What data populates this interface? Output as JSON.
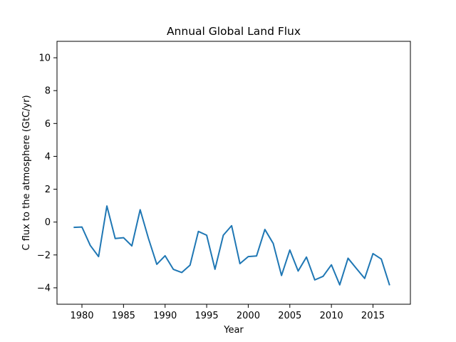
{
  "chart_data": {
    "type": "line",
    "title": "Annual Global Land Flux",
    "xlabel": "Year",
    "ylabel": "C flux to the atmosphere (GtC/yr)",
    "xlim": [
      1977,
      2019.5
    ],
    "ylim": [
      -5,
      11
    ],
    "xticks": [
      1980,
      1985,
      1990,
      1995,
      2000,
      2005,
      2010,
      2015
    ],
    "xtick_labels": [
      "1980",
      "1985",
      "1990",
      "1995",
      "2000",
      "2005",
      "2010",
      "2015"
    ],
    "yticks": [
      -4,
      -2,
      0,
      2,
      4,
      6,
      8,
      10
    ],
    "ytick_labels": [
      "−4",
      "−2",
      "0",
      "2",
      "4",
      "6",
      "8",
      "10"
    ],
    "grid": false,
    "series": [
      {
        "color": "#1f77b4",
        "x": [
          1979,
          1980,
          1981,
          1982,
          1983,
          1984,
          1985,
          1986,
          1987,
          1988,
          1989,
          1990,
          1991,
          1992,
          1993,
          1994,
          1995,
          1996,
          1997,
          1998,
          1999,
          2000,
          2001,
          2002,
          2003,
          2004,
          2005,
          2006,
          2007,
          2008,
          2009,
          2010,
          2011,
          2012,
          2013,
          2014,
          2015,
          2016,
          2017
        ],
        "y": [
          -0.32,
          -0.3,
          -1.42,
          -2.1,
          0.98,
          -1.0,
          -0.95,
          -1.45,
          0.75,
          -1.0,
          -2.57,
          -2.05,
          -2.88,
          -3.07,
          -2.62,
          -0.57,
          -0.8,
          -2.87,
          -0.8,
          -0.22,
          -2.53,
          -2.1,
          -2.06,
          -0.45,
          -1.3,
          -3.25,
          -1.7,
          -2.98,
          -2.13,
          -3.52,
          -3.3,
          -2.6,
          -3.82,
          -2.2,
          -2.82,
          -3.43,
          -1.92,
          -2.25,
          -3.85
        ]
      }
    ]
  }
}
